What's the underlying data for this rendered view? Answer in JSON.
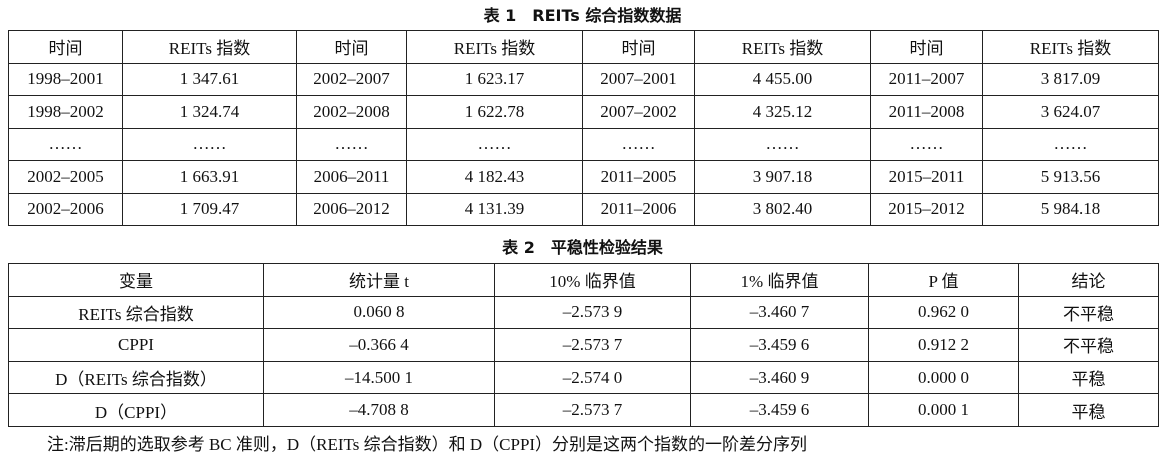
{
  "table1": {
    "title": "表 1　REITs 综合指数数据",
    "header": [
      "时间",
      "REITs 指数",
      "时间",
      "REITs 指数",
      "时间",
      "REITs 指数",
      "时间",
      "REITs 指数"
    ],
    "rows": [
      [
        "1998–2001",
        "1 347.61",
        "2002–2007",
        "1 623.17",
        "2007–2001",
        "4 455.00",
        "2011–2007",
        "3 817.09"
      ],
      [
        "1998–2002",
        "1 324.74",
        "2002–2008",
        "1 622.78",
        "2007–2002",
        "4 325.12",
        "2011–2008",
        "3 624.07"
      ],
      [
        "……",
        "……",
        "……",
        "……",
        "……",
        "……",
        "……",
        "……"
      ],
      [
        "2002–2005",
        "1 663.91",
        "2006–2011",
        "4 182.43",
        "2011–2005",
        "3 907.18",
        "2015–2011",
        "5 913.56"
      ],
      [
        "2002–2006",
        "1 709.47",
        "2006–2012",
        "4 131.39",
        "2011–2006",
        "3 802.40",
        "2015–2012",
        "5 984.18"
      ]
    ]
  },
  "table2": {
    "title": "表 2　平稳性检验结果",
    "header": [
      "变量",
      "统计量 t",
      "10% 临界值",
      "1% 临界值",
      "P 值",
      "结论"
    ],
    "rows": [
      [
        "REITs 综合指数",
        "0.060 8",
        "–2.573 9",
        "–3.460 7",
        "0.962 0",
        "不平稳"
      ],
      [
        "CPPI",
        "–0.366 4",
        "–2.573 7",
        "–3.459 6",
        "0.912 2",
        "不平稳"
      ],
      [
        "D（REITs 综合指数）",
        "–14.500 1",
        "–2.574 0",
        "–3.460 9",
        "0.000 0",
        "平稳"
      ],
      [
        "D（CPPI）",
        "–4.708 8",
        "–2.573 7",
        "–3.459 6",
        "0.000 1",
        "平稳"
      ]
    ]
  },
  "note": "注:滞后期的选取参考 BC 准则，D（REITs 综合指数）和 D（CPPI）分别是这两个指数的一阶差分序列"
}
